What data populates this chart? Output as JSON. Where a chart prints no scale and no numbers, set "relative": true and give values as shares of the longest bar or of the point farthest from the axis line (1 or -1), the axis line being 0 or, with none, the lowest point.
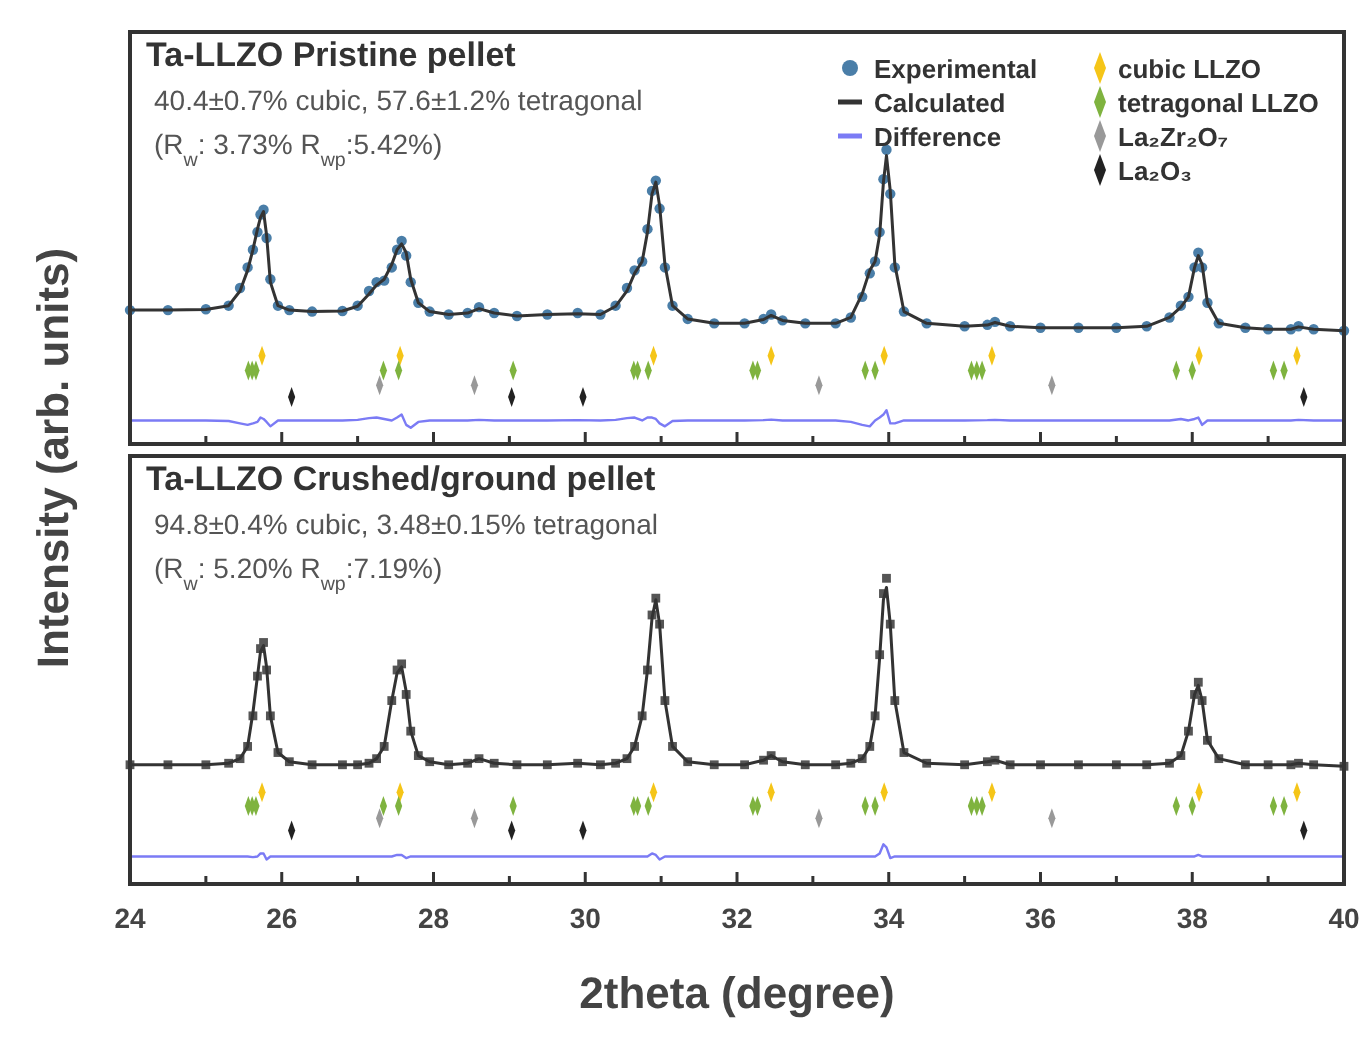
{
  "chart_data": [
    {
      "type": "line",
      "relative": true,
      "title": "Ta-LLZO Pristine pellet",
      "ylabel": "Intensity (arb. units)",
      "annotations": [
        "40.4±0.7% cubic, 57.6±1.2% tetragonal",
        "(R$_{w}$: 3.73% R$_{wp}$:5.42%)"
      ],
      "xlim": [
        24,
        40
      ],
      "xticks": [
        24,
        {
          "value": 25,
          "label": null
        },
        26,
        {
          "value": 27,
          "label": null
        },
        28,
        {
          "value": 29,
          "label": null
        },
        30,
        {
          "value": 31,
          "label": null
        },
        32,
        {
          "value": 33,
          "label": null
        },
        34,
        {
          "value": 35,
          "label": null
        },
        36,
        {
          "value": 37,
          "label": null
        },
        38,
        {
          "value": 39,
          "label": null
        },
        40
      ],
      "tick_labels": false,
      "legend": "top right",
      "x": [
        24.0,
        24.5,
        25.0,
        25.3,
        25.45,
        25.55,
        25.62,
        25.68,
        25.72,
        25.76,
        25.8,
        25.85,
        25.95,
        26.1,
        26.4,
        26.8,
        27.0,
        27.15,
        27.25,
        27.35,
        27.45,
        27.52,
        27.58,
        27.64,
        27.7,
        27.8,
        27.95,
        28.2,
        28.45,
        28.6,
        28.8,
        29.1,
        29.5,
        29.9,
        30.2,
        30.4,
        30.55,
        30.65,
        30.75,
        30.82,
        30.88,
        30.93,
        30.98,
        31.05,
        31.15,
        31.35,
        31.7,
        32.1,
        32.35,
        32.45,
        32.6,
        32.9,
        33.3,
        33.5,
        33.65,
        33.75,
        33.82,
        33.88,
        33.93,
        33.97,
        34.02,
        34.08,
        34.2,
        34.5,
        35.0,
        35.3,
        35.4,
        35.6,
        36.0,
        36.5,
        37.0,
        37.4,
        37.7,
        37.85,
        37.95,
        38.03,
        38.08,
        38.13,
        38.2,
        38.35,
        38.7,
        39.0,
        39.3,
        39.4,
        39.6,
        40.0
      ],
      "series": [
        {
          "name": "Experimental",
          "type": "scatter",
          "marker": "circle",
          "color": "#4a7ea8",
          "values": [
            0.455,
            0.455,
            0.458,
            0.47,
            0.53,
            0.6,
            0.66,
            0.72,
            0.78,
            0.796,
            0.7,
            0.56,
            0.47,
            0.455,
            0.45,
            0.452,
            0.47,
            0.52,
            0.55,
            0.555,
            0.6,
            0.66,
            0.69,
            0.64,
            0.55,
            0.48,
            0.45,
            0.44,
            0.445,
            0.465,
            0.445,
            0.435,
            0.44,
            0.445,
            0.44,
            0.47,
            0.53,
            0.59,
            0.62,
            0.73,
            0.86,
            0.895,
            0.8,
            0.6,
            0.47,
            0.425,
            0.41,
            0.41,
            0.425,
            0.44,
            0.42,
            0.41,
            0.41,
            0.43,
            0.5,
            0.58,
            0.62,
            0.72,
            0.9,
            1.0,
            0.85,
            0.6,
            0.45,
            0.41,
            0.4,
            0.405,
            0.415,
            0.4,
            0.395,
            0.395,
            0.395,
            0.4,
            0.43,
            0.47,
            0.5,
            0.6,
            0.65,
            0.6,
            0.48,
            0.41,
            0.395,
            0.39,
            0.39,
            0.4,
            0.39,
            0.385
          ]
        },
        {
          "name": "Calculated",
          "color": "#333333",
          "values": [
            0.455,
            0.455,
            0.457,
            0.47,
            0.52,
            0.59,
            0.66,
            0.73,
            0.77,
            0.79,
            0.71,
            0.55,
            0.47,
            0.455,
            0.45,
            0.452,
            0.468,
            0.51,
            0.54,
            0.56,
            0.61,
            0.66,
            0.68,
            0.65,
            0.56,
            0.48,
            0.45,
            0.44,
            0.445,
            0.46,
            0.445,
            0.435,
            0.44,
            0.443,
            0.44,
            0.468,
            0.52,
            0.58,
            0.62,
            0.72,
            0.85,
            0.89,
            0.81,
            0.61,
            0.47,
            0.425,
            0.41,
            0.41,
            0.423,
            0.437,
            0.42,
            0.41,
            0.41,
            0.43,
            0.51,
            0.59,
            0.62,
            0.71,
            0.89,
            0.98,
            0.86,
            0.61,
            0.45,
            0.41,
            0.4,
            0.404,
            0.413,
            0.4,
            0.395,
            0.395,
            0.395,
            0.4,
            0.43,
            0.465,
            0.5,
            0.6,
            0.64,
            0.61,
            0.48,
            0.41,
            0.395,
            0.39,
            0.39,
            0.398,
            0.39,
            0.385
          ]
        },
        {
          "name": "Difference",
          "color": "#7b7bf5",
          "values": [
            0.08,
            0.08,
            0.08,
            0.078,
            0.07,
            0.065,
            0.07,
            0.075,
            0.09,
            0.085,
            0.075,
            0.06,
            0.08,
            0.08,
            0.08,
            0.08,
            0.082,
            0.088,
            0.09,
            0.085,
            0.08,
            0.09,
            0.1,
            0.065,
            0.055,
            0.075,
            0.08,
            0.08,
            0.08,
            0.082,
            0.08,
            0.08,
            0.08,
            0.081,
            0.08,
            0.082,
            0.088,
            0.09,
            0.08,
            0.09,
            0.09,
            0.085,
            0.07,
            0.06,
            0.078,
            0.08,
            0.08,
            0.08,
            0.081,
            0.083,
            0.08,
            0.08,
            0.08,
            0.075,
            0.065,
            0.06,
            0.08,
            0.09,
            0.1,
            0.115,
            0.07,
            0.07,
            0.08,
            0.08,
            0.08,
            0.081,
            0.082,
            0.08,
            0.08,
            0.08,
            0.08,
            0.08,
            0.08,
            0.085,
            0.08,
            0.085,
            0.09,
            0.065,
            0.08,
            0.08,
            0.08,
            0.08,
            0.08,
            0.082,
            0.08,
            0.08
          ]
        },
        {
          "name": "cubic LLZO",
          "type": "scatter",
          "marker": "diamond",
          "color": "#f5c518",
          "x": [
            25.74,
            27.56,
            30.9,
            32.45,
            33.94,
            35.36,
            38.09,
            39.38
          ],
          "values": [
            0.3,
            0.3,
            0.3,
            0.3,
            0.3,
            0.3,
            0.3,
            0.3
          ]
        },
        {
          "name": "tetragonal LLZO",
          "type": "scatter",
          "marker": "diamond",
          "color": "#7fb33f",
          "x": [
            25.56,
            25.61,
            25.66,
            27.34,
            27.54,
            29.05,
            30.64,
            30.69,
            30.83,
            32.21,
            32.27,
            33.69,
            33.82,
            35.09,
            35.16,
            35.23,
            37.79,
            38.0,
            39.07,
            39.21
          ],
          "values": [
            0.25,
            0.25,
            0.25,
            0.25,
            0.25,
            0.25,
            0.25,
            0.25,
            0.25,
            0.25,
            0.25,
            0.25,
            0.25,
            0.25,
            0.25,
            0.25,
            0.25,
            0.25,
            0.25,
            0.25
          ]
        },
        {
          "name": "La₂Zr₂O₇",
          "type": "scatter",
          "marker": "diamond",
          "color": "#999999",
          "x": [
            27.29,
            28.54,
            33.08,
            36.15
          ],
          "values": [
            0.2,
            0.2,
            0.2,
            0.2
          ]
        },
        {
          "name": "La₂O₃",
          "type": "scatter",
          "marker": "diamond",
          "color": "#222222",
          "x": [
            26.13,
            29.03,
            29.97,
            39.47
          ],
          "values": [
            0.16,
            0.16,
            0.16,
            0.16
          ]
        }
      ]
    },
    {
      "type": "line",
      "relative": true,
      "title": "Ta-LLZO Crushed/ground pellet",
      "xlabel": "2theta (degree)",
      "annotations": [
        "94.8±0.4% cubic, 3.48±0.15% tetragonal",
        "(R$_{w}$: 5.20% R$_{wp}$:7.19%)"
      ],
      "xlim": [
        24,
        40
      ],
      "xticks": [
        24,
        {
          "value": 25,
          "label": null
        },
        26,
        {
          "value": 27,
          "label": null
        },
        28,
        {
          "value": 29,
          "label": null
        },
        30,
        {
          "value": 31,
          "label": null
        },
        32,
        {
          "value": 33,
          "label": null
        },
        34,
        {
          "value": 35,
          "label": null
        },
        36,
        {
          "value": 37,
          "label": null
        },
        38,
        {
          "value": 39,
          "label": null
        },
        40
      ],
      "x": [
        24.0,
        24.5,
        25.0,
        25.3,
        25.45,
        25.55,
        25.62,
        25.68,
        25.72,
        25.76,
        25.8,
        25.85,
        25.95,
        26.1,
        26.4,
        26.8,
        27.0,
        27.15,
        27.25,
        27.35,
        27.45,
        27.52,
        27.58,
        27.64,
        27.7,
        27.8,
        27.95,
        28.2,
        28.45,
        28.6,
        28.8,
        29.1,
        29.5,
        29.9,
        30.2,
        30.4,
        30.55,
        30.65,
        30.75,
        30.82,
        30.88,
        30.93,
        30.98,
        31.05,
        31.15,
        31.35,
        31.7,
        32.1,
        32.35,
        32.45,
        32.6,
        32.9,
        33.3,
        33.5,
        33.65,
        33.75,
        33.82,
        33.88,
        33.93,
        33.97,
        34.02,
        34.08,
        34.2,
        34.5,
        35.0,
        35.3,
        35.4,
        35.6,
        36.0,
        36.5,
        37.0,
        37.4,
        37.7,
        37.85,
        37.95,
        38.03,
        38.08,
        38.13,
        38.2,
        38.35,
        38.7,
        39.0,
        39.3,
        39.4,
        39.6,
        40.0
      ],
      "series": [
        {
          "type": "scatter",
          "marker": "square",
          "color": "#555555",
          "values": [
            0.39,
            0.39,
            0.39,
            0.395,
            0.41,
            0.45,
            0.55,
            0.68,
            0.77,
            0.79,
            0.7,
            0.55,
            0.43,
            0.4,
            0.39,
            0.39,
            0.39,
            0.395,
            0.41,
            0.45,
            0.6,
            0.7,
            0.72,
            0.62,
            0.5,
            0.42,
            0.4,
            0.39,
            0.395,
            0.41,
            0.395,
            0.39,
            0.39,
            0.395,
            0.39,
            0.395,
            0.41,
            0.45,
            0.55,
            0.7,
            0.88,
            0.935,
            0.85,
            0.6,
            0.45,
            0.4,
            0.39,
            0.39,
            0.405,
            0.42,
            0.4,
            0.39,
            0.39,
            0.395,
            0.41,
            0.45,
            0.55,
            0.75,
            0.95,
            1.0,
            0.85,
            0.6,
            0.43,
            0.395,
            0.39,
            0.4,
            0.405,
            0.39,
            0.39,
            0.39,
            0.39,
            0.39,
            0.395,
            0.42,
            0.5,
            0.62,
            0.66,
            0.6,
            0.47,
            0.41,
            0.39,
            0.39,
            0.39,
            0.395,
            0.39,
            0.385
          ]
        },
        {
          "color": "#333333",
          "values": [
            0.39,
            0.39,
            0.39,
            0.395,
            0.41,
            0.45,
            0.56,
            0.68,
            0.76,
            0.78,
            0.71,
            0.55,
            0.43,
            0.4,
            0.39,
            0.39,
            0.39,
            0.395,
            0.41,
            0.45,
            0.6,
            0.69,
            0.71,
            0.63,
            0.5,
            0.42,
            0.4,
            0.39,
            0.395,
            0.41,
            0.395,
            0.39,
            0.39,
            0.395,
            0.39,
            0.395,
            0.41,
            0.45,
            0.55,
            0.7,
            0.87,
            0.93,
            0.85,
            0.6,
            0.45,
            0.4,
            0.39,
            0.39,
            0.405,
            0.42,
            0.4,
            0.39,
            0.39,
            0.395,
            0.41,
            0.45,
            0.55,
            0.74,
            0.93,
            0.97,
            0.85,
            0.6,
            0.43,
            0.395,
            0.39,
            0.4,
            0.405,
            0.39,
            0.39,
            0.39,
            0.39,
            0.39,
            0.395,
            0.42,
            0.5,
            0.62,
            0.65,
            0.6,
            0.47,
            0.41,
            0.39,
            0.39,
            0.39,
            0.395,
            0.39,
            0.385
          ]
        },
        {
          "color": "#7b7bf5",
          "values": [
            0.09,
            0.09,
            0.09,
            0.09,
            0.09,
            0.09,
            0.088,
            0.09,
            0.1,
            0.1,
            0.08,
            0.09,
            0.09,
            0.09,
            0.09,
            0.09,
            0.09,
            0.09,
            0.09,
            0.09,
            0.09,
            0.095,
            0.095,
            0.085,
            0.09,
            0.09,
            0.09,
            0.09,
            0.09,
            0.09,
            0.09,
            0.09,
            0.09,
            0.09,
            0.09,
            0.09,
            0.09,
            0.09,
            0.09,
            0.09,
            0.1,
            0.095,
            0.08,
            0.09,
            0.09,
            0.09,
            0.09,
            0.09,
            0.09,
            0.09,
            0.09,
            0.09,
            0.09,
            0.09,
            0.09,
            0.09,
            0.09,
            0.1,
            0.13,
            0.12,
            0.085,
            0.09,
            0.09,
            0.09,
            0.09,
            0.09,
            0.09,
            0.09,
            0.09,
            0.09,
            0.09,
            0.09,
            0.09,
            0.09,
            0.09,
            0.09,
            0.095,
            0.09,
            0.09,
            0.09,
            0.09,
            0.09,
            0.09,
            0.09,
            0.09,
            0.09
          ]
        },
        {
          "type": "scatter",
          "marker": "diamond",
          "color": "#f5c518",
          "x": [
            25.74,
            27.56,
            30.9,
            32.45,
            33.94,
            35.36,
            38.09,
            39.38
          ],
          "values": [
            0.3,
            0.3,
            0.3,
            0.3,
            0.3,
            0.3,
            0.3,
            0.3
          ]
        },
        {
          "type": "scatter",
          "marker": "diamond",
          "color": "#7fb33f",
          "x": [
            25.56,
            25.61,
            25.66,
            27.34,
            27.54,
            29.05,
            30.64,
            30.69,
            30.83,
            32.21,
            32.27,
            33.69,
            33.82,
            35.09,
            35.16,
            35.23,
            37.79,
            38.0,
            39.07,
            39.21
          ],
          "values": [
            0.255,
            0.255,
            0.255,
            0.255,
            0.255,
            0.255,
            0.255,
            0.255,
            0.255,
            0.255,
            0.255,
            0.255,
            0.255,
            0.255,
            0.255,
            0.255,
            0.255,
            0.255,
            0.255,
            0.255
          ]
        },
        {
          "type": "scatter",
          "marker": "diamond",
          "color": "#999999",
          "x": [
            27.29,
            28.54,
            33.08,
            36.15
          ],
          "values": [
            0.215,
            0.215,
            0.215,
            0.215
          ]
        },
        {
          "type": "scatter",
          "marker": "diamond",
          "color": "#222222",
          "x": [
            26.13,
            29.03,
            29.97,
            39.47
          ],
          "values": [
            0.175,
            0.175,
            0.175,
            0.175
          ]
        }
      ]
    }
  ]
}
